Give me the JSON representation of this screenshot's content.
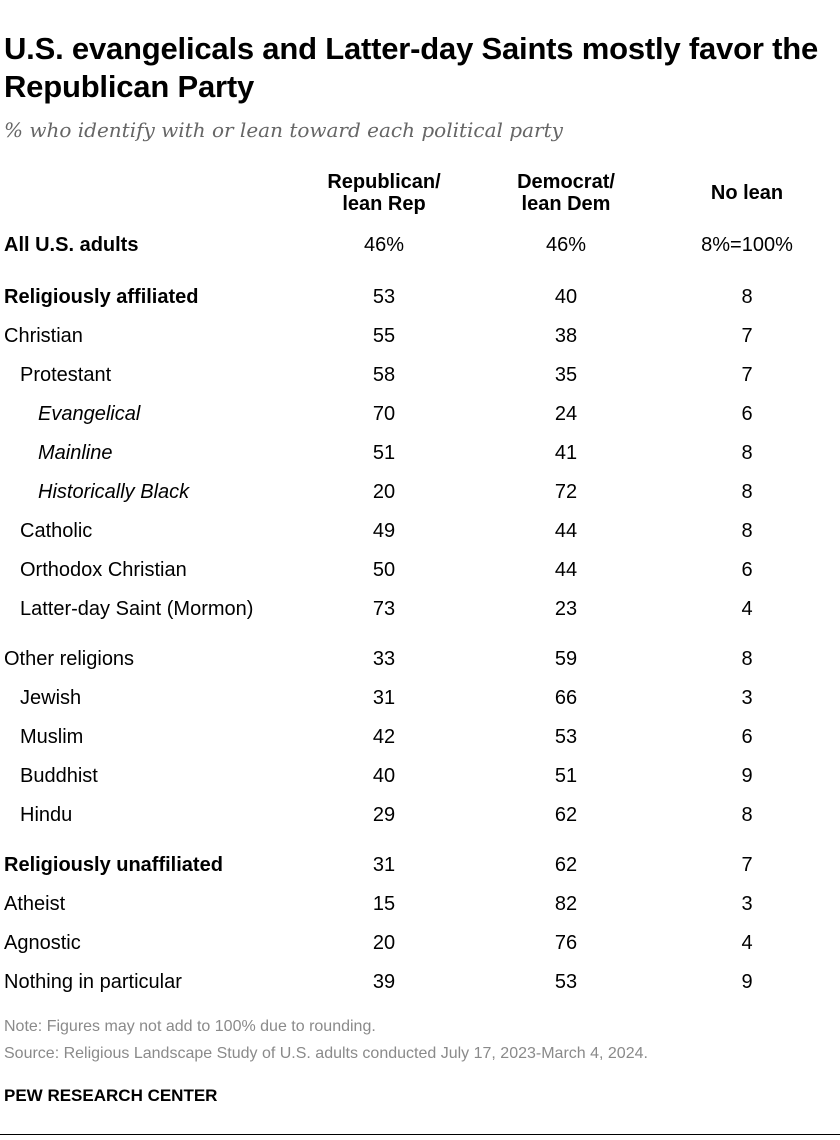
{
  "title": "U.S. evangelicals and Latter-day Saints mostly favor the Republican Party",
  "subtitle": "% who identify with or lean toward each political party",
  "columns": {
    "rep_line1": "Republican/",
    "rep_line2": "lean Rep",
    "dem_line1": "Democrat/",
    "dem_line2": "lean Dem",
    "nolean": "No lean"
  },
  "rows": [
    {
      "label": "All U.S. adults",
      "rep": "46%",
      "dem": "46%",
      "nolean": "8%=100%"
    },
    {
      "label": "Religiously affiliated",
      "rep": "53",
      "dem": "40",
      "nolean": "8"
    },
    {
      "label": "Christian",
      "rep": "55",
      "dem": "38",
      "nolean": "7"
    },
    {
      "label": "Protestant",
      "rep": "58",
      "dem": "35",
      "nolean": "7"
    },
    {
      "label": "Evangelical",
      "rep": "70",
      "dem": "24",
      "nolean": "6"
    },
    {
      "label": "Mainline",
      "rep": "51",
      "dem": "41",
      "nolean": "8"
    },
    {
      "label": "Historically Black",
      "rep": "20",
      "dem": "72",
      "nolean": "8"
    },
    {
      "label": "Catholic",
      "rep": "49",
      "dem": "44",
      "nolean": "8"
    },
    {
      "label": "Orthodox Christian",
      "rep": "50",
      "dem": "44",
      "nolean": "6"
    },
    {
      "label": "Latter-day Saint (Mormon)",
      "rep": "73",
      "dem": "23",
      "nolean": "4"
    },
    {
      "label": "Other religions",
      "rep": "33",
      "dem": "59",
      "nolean": "8"
    },
    {
      "label": "Jewish",
      "rep": "31",
      "dem": "66",
      "nolean": "3"
    },
    {
      "label": "Muslim",
      "rep": "42",
      "dem": "53",
      "nolean": "6"
    },
    {
      "label": "Buddhist",
      "rep": "40",
      "dem": "51",
      "nolean": "9"
    },
    {
      "label": "Hindu",
      "rep": "29",
      "dem": "62",
      "nolean": "8"
    },
    {
      "label": "Religiously unaffiliated",
      "rep": "31",
      "dem": "62",
      "nolean": "7"
    },
    {
      "label": "Atheist",
      "rep": "15",
      "dem": "82",
      "nolean": "3"
    },
    {
      "label": "Agnostic",
      "rep": "20",
      "dem": "76",
      "nolean": "4"
    },
    {
      "label": "Nothing in particular",
      "rep": "39",
      "dem": "53",
      "nolean": "9"
    }
  ],
  "note": "Note: Figures may not add to 100% due to rounding.",
  "source": "Source: Religious Landscape Study of U.S. adults conducted July 17, 2023-March 4, 2024.",
  "brand": "PEW RESEARCH CENTER",
  "chart_data": {
    "type": "table",
    "title": "U.S. evangelicals and Latter-day Saints mostly favor the Republican Party",
    "subtitle": "% who identify with or lean toward each political party",
    "columns": [
      "Republican/ lean Rep",
      "Democrat/ lean Dem",
      "No lean"
    ],
    "categories": [
      "All U.S. adults",
      "Religiously affiliated",
      "Christian",
      "Protestant",
      "Evangelical",
      "Mainline",
      "Historically Black",
      "Catholic",
      "Orthodox Christian",
      "Latter-day Saint (Mormon)",
      "Other religions",
      "Jewish",
      "Muslim",
      "Buddhist",
      "Hindu",
      "Religiously unaffiliated",
      "Atheist",
      "Agnostic",
      "Nothing in particular"
    ],
    "series": [
      {
        "name": "Republican/ lean Rep",
        "values": [
          46,
          53,
          55,
          58,
          70,
          51,
          20,
          49,
          50,
          73,
          33,
          31,
          42,
          40,
          29,
          31,
          15,
          20,
          39
        ]
      },
      {
        "name": "Democrat/ lean Dem",
        "values": [
          46,
          40,
          38,
          35,
          24,
          41,
          72,
          44,
          44,
          23,
          59,
          66,
          53,
          51,
          62,
          62,
          82,
          76,
          53
        ]
      },
      {
        "name": "No lean",
        "values": [
          8,
          8,
          7,
          7,
          6,
          8,
          8,
          8,
          6,
          4,
          8,
          3,
          6,
          9,
          8,
          7,
          3,
          4,
          9
        ]
      }
    ]
  }
}
